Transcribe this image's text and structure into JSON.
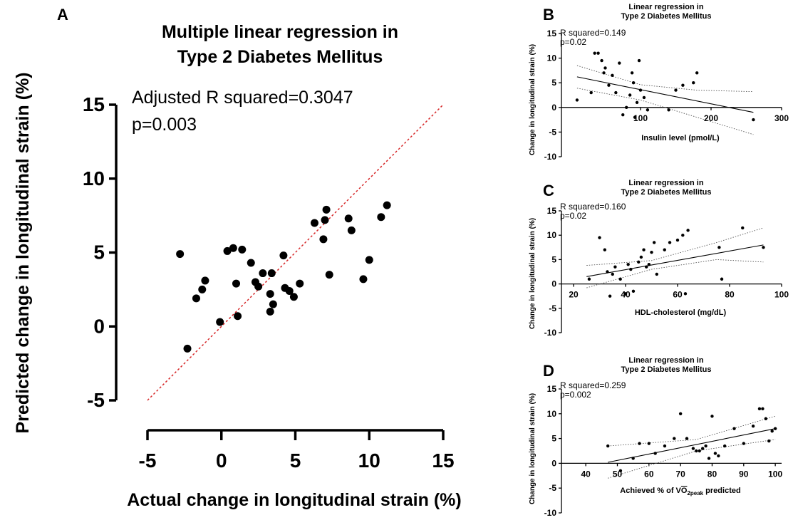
{
  "chart_data": [
    {
      "panel_label": "A",
      "type": "scatter",
      "title": "Multiple linear regression in",
      "subtitle": "Type 2 Diabetes Mellitus",
      "annotations": [
        "Adjusted R squared=0.3047",
        "p=0.003"
      ],
      "xlabel": "Actual change in longitudinal strain (%)",
      "ylabel": "Predicted change in longitudinal strain (%)",
      "xlim": [
        -5,
        15
      ],
      "ylim": [
        -5,
        15
      ],
      "xticks": [
        "-5",
        "0",
        "5",
        "10",
        "15"
      ],
      "yticks": [
        "-5",
        "0",
        "5",
        "10",
        "15"
      ],
      "identity_line": [
        [
          -5,
          -5
        ],
        [
          15,
          15
        ]
      ],
      "identity_line_color": "#d62728",
      "x": [
        -2.8,
        -2.3,
        -1.7,
        -1.3,
        -1.1,
        -0.1,
        0.4,
        0.8,
        1.0,
        1.1,
        1.4,
        2.0,
        2.3,
        2.5,
        2.8,
        3.3,
        3.3,
        3.4,
        3.5,
        4.2,
        4.3,
        4.6,
        4.9,
        5.3,
        6.3,
        6.9,
        7.0,
        7.1,
        7.3,
        8.6,
        8.8,
        9.6,
        10.0,
        10.8,
        11.2
      ],
      "y": [
        4.9,
        -1.5,
        1.9,
        2.5,
        3.1,
        0.3,
        5.1,
        5.3,
        2.9,
        0.7,
        5.2,
        4.3,
        3.0,
        2.7,
        3.6,
        2.2,
        1.0,
        3.6,
        1.5,
        4.8,
        2.6,
        2.4,
        2.0,
        2.9,
        7.0,
        5.9,
        7.2,
        7.9,
        3.5,
        7.3,
        6.5,
        3.2,
        4.5,
        7.4,
        8.2
      ]
    },
    {
      "panel_label": "B",
      "type": "scatter",
      "title": "Linear regression in",
      "subtitle": "Type 2 Diabetes Mellitus",
      "annotations": [
        "R squared=0.149",
        "p=0.02"
      ],
      "xlabel": "Insulin level (pmol/L)",
      "ylabel": "Change in longitudinal strain (%)",
      "xlim": [
        0,
        300
      ],
      "ylim": [
        -10,
        15
      ],
      "xticks": [
        "100",
        "200",
        "300"
      ],
      "yticks": [
        "-10",
        "-5",
        "0",
        "5",
        "10",
        "15"
      ],
      "x": [
        10,
        30,
        35,
        40,
        45,
        48,
        50,
        55,
        60,
        65,
        70,
        75,
        80,
        85,
        88,
        90,
        92,
        95,
        98,
        100,
        105,
        110,
        140,
        150,
        160,
        175,
        180,
        260
      ],
      "y": [
        1.5,
        3.0,
        11.0,
        11.0,
        9.5,
        7.0,
        8.0,
        4.5,
        6.5,
        3.0,
        9.0,
        -1.5,
        0.0,
        2.5,
        7.0,
        5.0,
        -2.0,
        1.0,
        9.5,
        3.5,
        2.0,
        -0.5,
        -0.5,
        3.5,
        4.5,
        5.0,
        7.0,
        -2.5
      ],
      "fit_line": [
        [
          10,
          6.2
        ],
        [
          260,
          -1.0
        ]
      ],
      "ci_upper": [
        [
          10,
          8.5
        ],
        [
          100,
          4.6
        ],
        [
          180,
          3.5
        ],
        [
          260,
          3.2
        ]
      ],
      "ci_lower": [
        [
          10,
          3.9
        ],
        [
          100,
          1.5
        ],
        [
          180,
          -2.0
        ],
        [
          260,
          -5.5
        ]
      ]
    },
    {
      "panel_label": "C",
      "type": "scatter",
      "title": "Linear regression in",
      "subtitle": "Type 2 Diabetes Mellitus",
      "annotations": [
        "R squared=0.160",
        "p=0.02"
      ],
      "xlabel": "HDL-cholesterol (mg/dL)",
      "ylabel": "Change in longitudinal strain (%)",
      "xlim": [
        20,
        100
      ],
      "ylim": [
        -10,
        15
      ],
      "xticks": [
        "20",
        "40",
        "60",
        "80",
        "100"
      ],
      "yticks": [
        "-10",
        "-5",
        "0",
        "5",
        "10",
        "15"
      ],
      "x": [
        26,
        30,
        32,
        33,
        34,
        35,
        36,
        38,
        40,
        41,
        42,
        43,
        45,
        46,
        47,
        48,
        49,
        50,
        51,
        52,
        55,
        57,
        60,
        62,
        63,
        64,
        76,
        77,
        85,
        93
      ],
      "y": [
        1.0,
        9.5,
        7.0,
        2.5,
        -2.5,
        2.0,
        3.5,
        1.0,
        -2.0,
        4.0,
        3.0,
        -1.5,
        4.5,
        5.5,
        7.0,
        3.5,
        4.0,
        6.5,
        8.5,
        2.0,
        7.0,
        8.5,
        9.0,
        10.0,
        -2.0,
        11.0,
        7.5,
        1.0,
        11.5,
        7.5
      ],
      "fit_line": [
        [
          25,
          1.5
        ],
        [
          93,
          8.0
        ]
      ],
      "ci_upper": [
        [
          25,
          3.8
        ],
        [
          50,
          4.8
        ],
        [
          75,
          8.5
        ],
        [
          93,
          11.5
        ]
      ],
      "ci_lower": [
        [
          25,
          -0.8
        ],
        [
          50,
          3.0
        ],
        [
          75,
          5.0
        ],
        [
          93,
          4.5
        ]
      ]
    },
    {
      "panel_label": "D",
      "type": "scatter",
      "title": "Linear regression in",
      "subtitle": "Type 2 Diabetes Mellitus",
      "annotations": [
        "R squared=0.259",
        "p=0.002"
      ],
      "xlabel": "Achieved % of VO2peak predicted",
      "xlabel_parts": [
        "Achieved % of V",
        "O",
        "2peak",
        " predicted"
      ],
      "ylabel": "Change in longitudinal strain (%)",
      "xlim": [
        35,
        102
      ],
      "ylim": [
        -10,
        15
      ],
      "xticks": [
        "40",
        "50",
        "60",
        "70",
        "80",
        "90",
        "100"
      ],
      "yticks": [
        "-10",
        "-5",
        "0",
        "5",
        "10",
        "15"
      ],
      "x": [
        47,
        51,
        55,
        57,
        60,
        62,
        65,
        68,
        70,
        72,
        74,
        75,
        76,
        77,
        78,
        79,
        80,
        81,
        82,
        84,
        87,
        90,
        93,
        95,
        96,
        97,
        98,
        99,
        100
      ],
      "y": [
        3.5,
        -1.5,
        1.0,
        4.0,
        4.0,
        2.0,
        3.5,
        5.0,
        10.0,
        5.0,
        3.0,
        2.5,
        2.5,
        3.0,
        3.5,
        1.0,
        9.5,
        2.0,
        1.5,
        3.5,
        7.0,
        4.0,
        7.5,
        11.0,
        11.0,
        9.0,
        4.5,
        6.5,
        7.0
      ],
      "fit_line": [
        [
          47,
          0.2
        ],
        [
          100,
          7.0
        ]
      ],
      "ci_upper": [
        [
          47,
          3.5
        ],
        [
          75,
          4.8
        ],
        [
          100,
          9.5
        ]
      ],
      "ci_lower": [
        [
          47,
          -3.0
        ],
        [
          75,
          2.5
        ],
        [
          100,
          4.8
        ]
      ]
    }
  ]
}
